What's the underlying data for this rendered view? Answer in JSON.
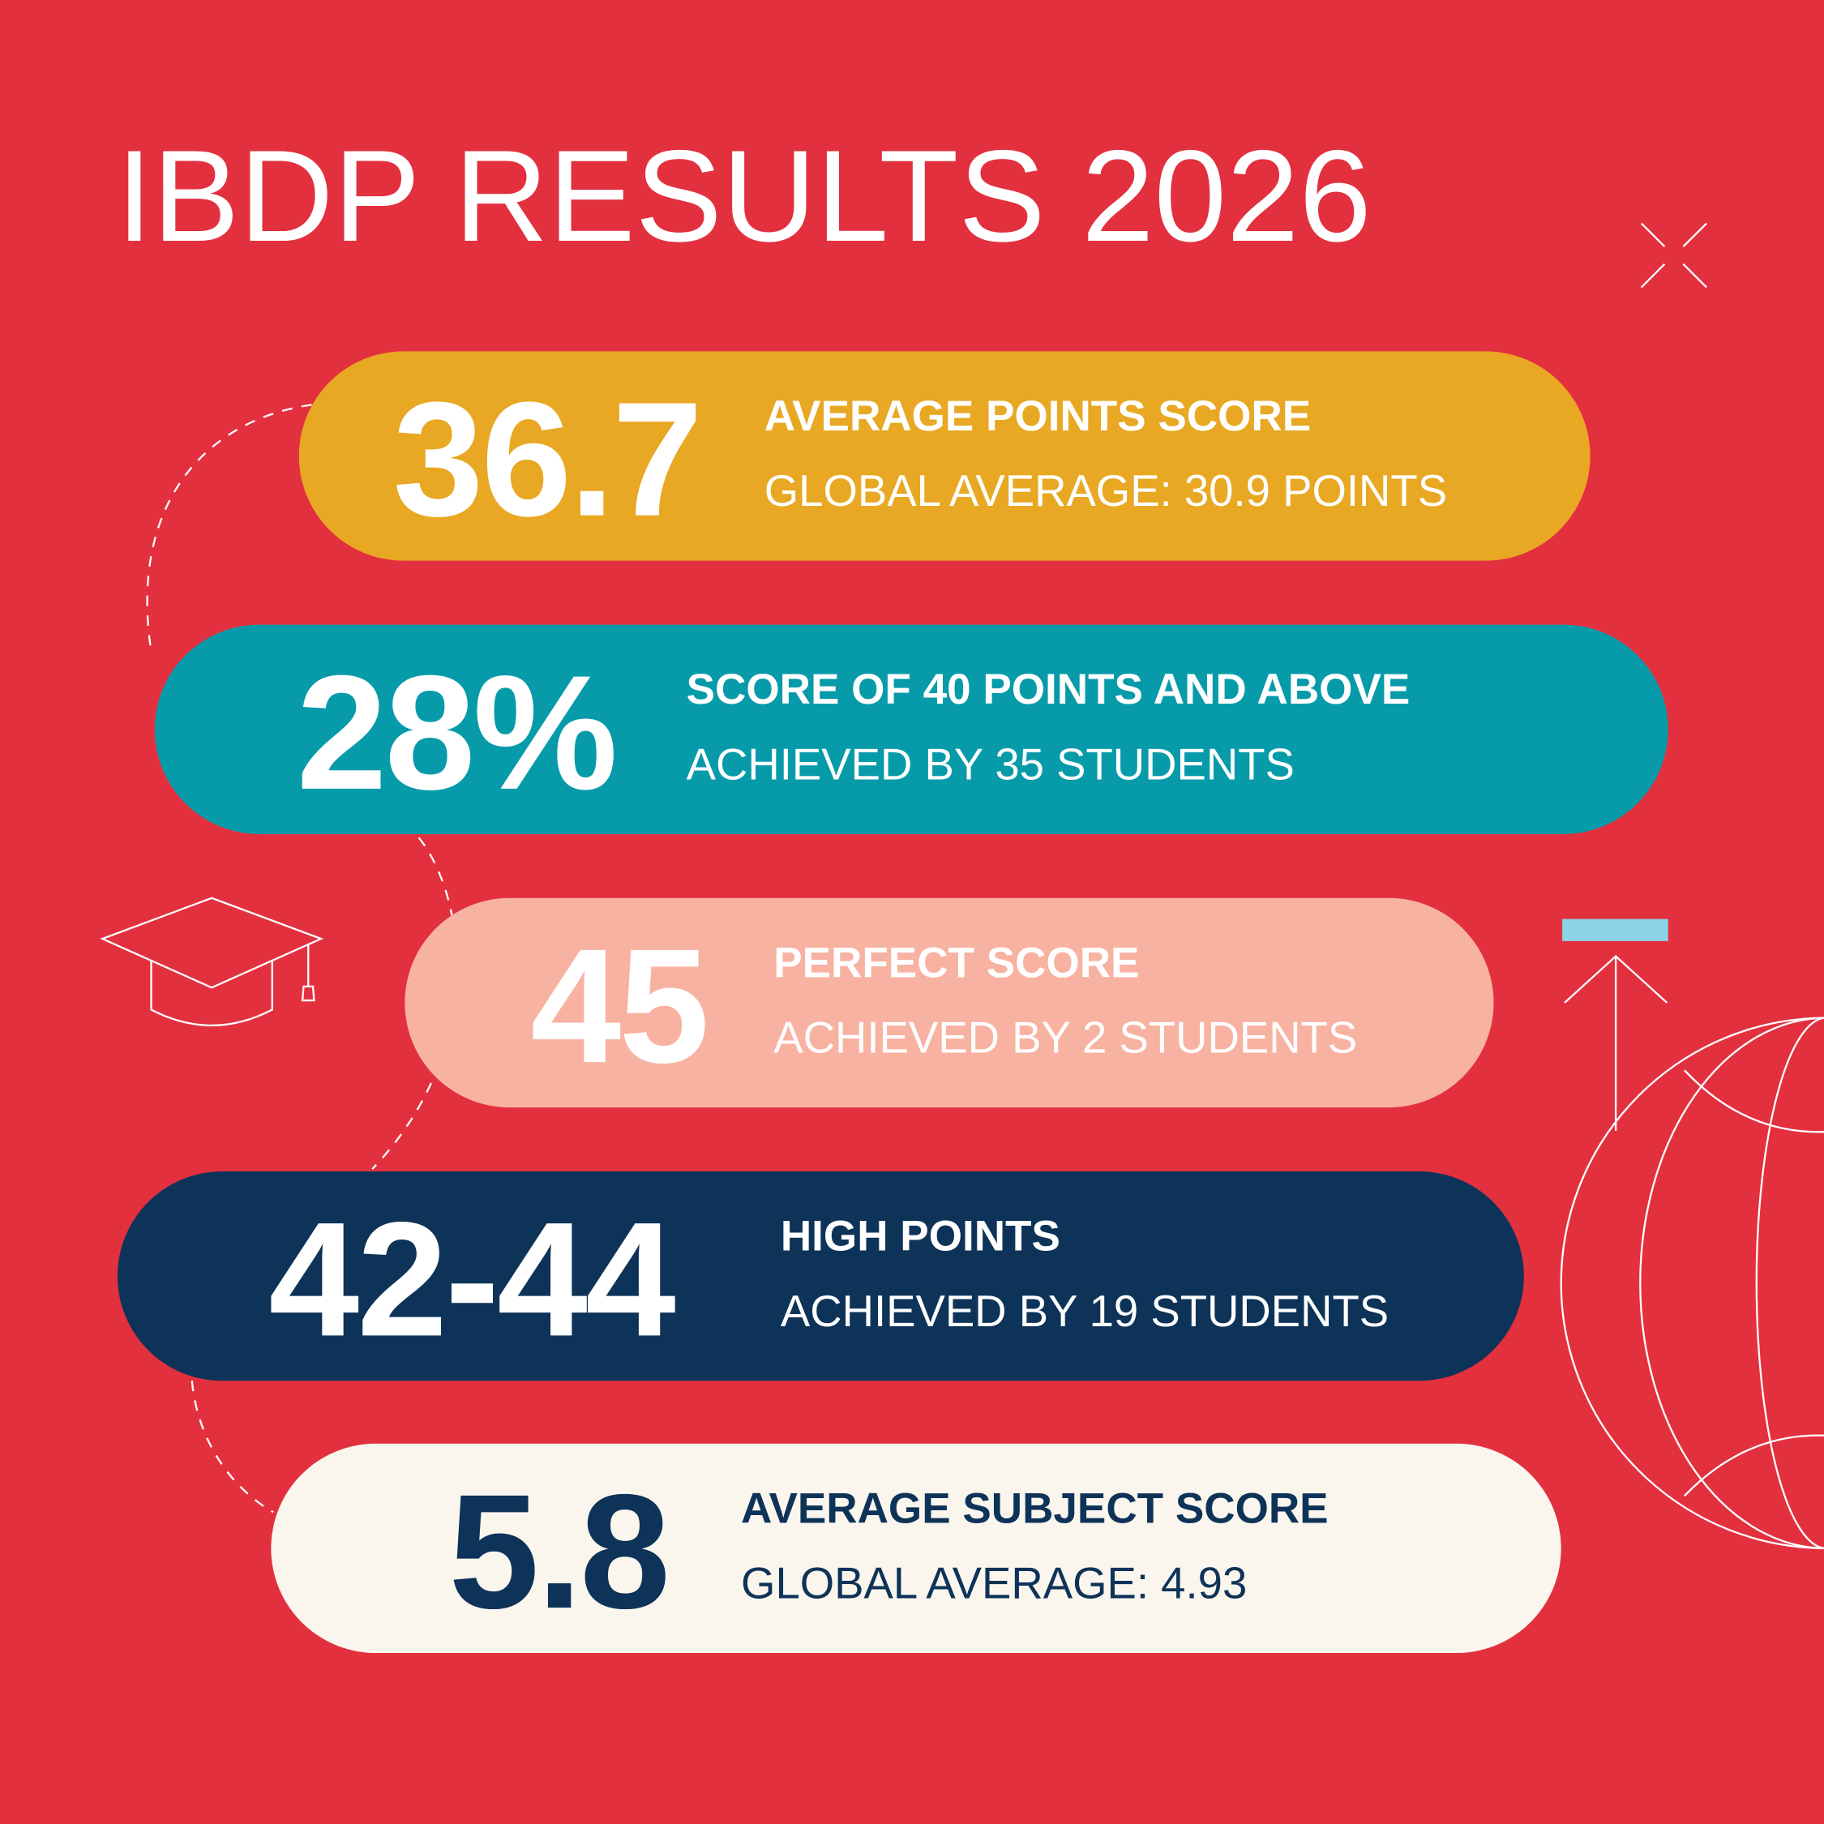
{
  "title": "IBDP RESULTS 2026",
  "stats": [
    {
      "value": "36.7",
      "heading": "AVERAGE POINTS SCORE",
      "detail": "GLOBAL AVERAGE: 30.9 POINTS"
    },
    {
      "value": "28%",
      "heading": "SCORE OF 40 POINTS AND ABOVE",
      "detail": "ACHIEVED BY 35 STUDENTS"
    },
    {
      "value": "45",
      "heading": "PERFECT SCORE",
      "detail": "ACHIEVED BY 2 STUDENTS"
    },
    {
      "value": "42-44",
      "heading": "HIGH POINTS",
      "detail": "ACHIEVED BY 19 STUDENTS"
    },
    {
      "value": "5.8",
      "heading": "AVERAGE SUBJECT SCORE",
      "detail": "GLOBAL AVERAGE: 4.93"
    }
  ]
}
